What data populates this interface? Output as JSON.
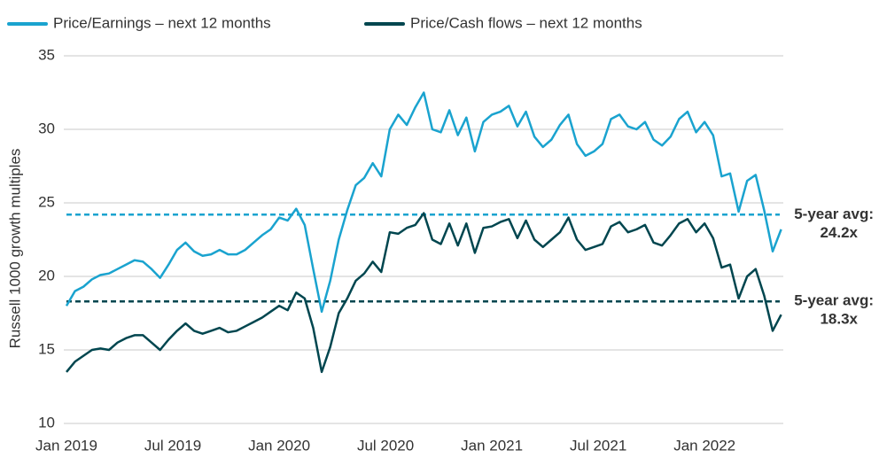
{
  "chart_data": {
    "type": "line",
    "ylabel": "Russell 1000 growth multiples",
    "xlim": [
      2019,
      2022.37
    ],
    "xticks": [
      {
        "value": 2019,
        "label": "Jan 2019"
      },
      {
        "value": 2019.5,
        "label": "Jul 2019"
      },
      {
        "value": 2020,
        "label": "Jan 2020"
      },
      {
        "value": 2020.5,
        "label": "Jul 2020"
      },
      {
        "value": 2021,
        "label": "Jan 2021"
      },
      {
        "value": 2021.5,
        "label": "Jul 2021"
      },
      {
        "value": 2022,
        "label": "Jan 2022"
      }
    ],
    "ylim": [
      10,
      35
    ],
    "yticks": [
      10,
      15,
      20,
      25,
      30,
      35
    ],
    "grid": true,
    "x": [
      2019.0,
      2019.04,
      2019.08,
      2019.12,
      2019.16,
      2019.2,
      2019.24,
      2019.28,
      2019.32,
      2019.36,
      2019.4,
      2019.44,
      2019.48,
      2019.52,
      2019.56,
      2019.6,
      2019.64,
      2019.68,
      2019.72,
      2019.76,
      2019.8,
      2019.84,
      2019.88,
      2019.92,
      2019.96,
      2020.0,
      2020.04,
      2020.08,
      2020.12,
      2020.16,
      2020.2,
      2020.24,
      2020.28,
      2020.32,
      2020.36,
      2020.4,
      2020.44,
      2020.48,
      2020.52,
      2020.56,
      2020.6,
      2020.64,
      2020.68,
      2020.72,
      2020.76,
      2020.8,
      2020.84,
      2020.88,
      2020.92,
      2020.96,
      2021.0,
      2021.04,
      2021.08,
      2021.12,
      2021.16,
      2021.2,
      2021.24,
      2021.28,
      2021.32,
      2021.36,
      2021.4,
      2021.44,
      2021.48,
      2021.52,
      2021.56,
      2021.6,
      2021.64,
      2021.68,
      2021.72,
      2021.76,
      2021.8,
      2021.84,
      2021.88,
      2021.92,
      2021.96,
      2022.0,
      2022.04,
      2022.08,
      2022.12,
      2022.16,
      2022.2,
      2022.24,
      2022.28,
      2022.32,
      2022.36
    ],
    "series": [
      {
        "name": "Price/Earnings – next 12 months",
        "color": "#1aa3cf",
        "values": [
          18.0,
          19.0,
          19.3,
          19.8,
          20.1,
          20.2,
          20.5,
          20.8,
          21.1,
          21.0,
          20.5,
          19.9,
          20.8,
          21.8,
          22.3,
          21.7,
          21.4,
          21.5,
          21.8,
          21.5,
          21.5,
          21.8,
          22.3,
          22.8,
          23.2,
          24.0,
          23.8,
          24.6,
          23.5,
          20.5,
          17.6,
          19.7,
          22.5,
          24.5,
          26.2,
          26.7,
          27.7,
          26.8,
          30.0,
          31.0,
          30.3,
          31.5,
          32.5,
          30.0,
          29.8,
          31.3,
          29.6,
          30.8,
          28.5,
          30.5,
          31.0,
          31.2,
          31.6,
          30.2,
          31.2,
          29.5,
          28.8,
          29.3,
          30.3,
          31.0,
          29.0,
          28.2,
          28.5,
          29.0,
          30.7,
          31.0,
          30.2,
          30.0,
          30.5,
          29.3,
          28.9,
          29.5,
          30.7,
          31.2,
          29.8,
          30.5,
          29.6,
          26.8,
          27.0,
          24.4,
          26.5,
          26.9,
          24.5,
          21.7,
          23.2
        ]
      },
      {
        "name": "Price/Cash flows – next 12 months",
        "color": "#00464f",
        "values": [
          13.5,
          14.2,
          14.6,
          15.0,
          15.1,
          15.0,
          15.5,
          15.8,
          16.0,
          16.0,
          15.5,
          15.0,
          15.7,
          16.3,
          16.8,
          16.3,
          16.1,
          16.3,
          16.5,
          16.2,
          16.3,
          16.6,
          16.9,
          17.2,
          17.6,
          18.0,
          17.7,
          18.9,
          18.5,
          16.5,
          13.5,
          15.2,
          17.5,
          18.5,
          19.7,
          20.2,
          21.0,
          20.3,
          23.0,
          22.9,
          23.3,
          23.5,
          24.3,
          22.5,
          22.2,
          23.6,
          22.1,
          23.6,
          21.6,
          23.3,
          23.4,
          23.7,
          23.9,
          22.6,
          23.8,
          22.5,
          22.0,
          22.5,
          23.0,
          24.0,
          22.5,
          21.8,
          22.0,
          22.2,
          23.4,
          23.7,
          23.0,
          23.2,
          23.5,
          22.3,
          22.1,
          22.8,
          23.6,
          23.9,
          23.0,
          23.6,
          22.6,
          20.6,
          20.8,
          18.5,
          20.0,
          20.5,
          18.7,
          16.3,
          17.4
        ]
      }
    ],
    "avg_lines": [
      {
        "value": 24.2,
        "text": "5-year avg:",
        "label": "24.2x",
        "color": "#1aa3cf"
      },
      {
        "value": 18.3,
        "text": "5-year avg:",
        "label": "18.3x",
        "color": "#00464f"
      }
    ]
  }
}
